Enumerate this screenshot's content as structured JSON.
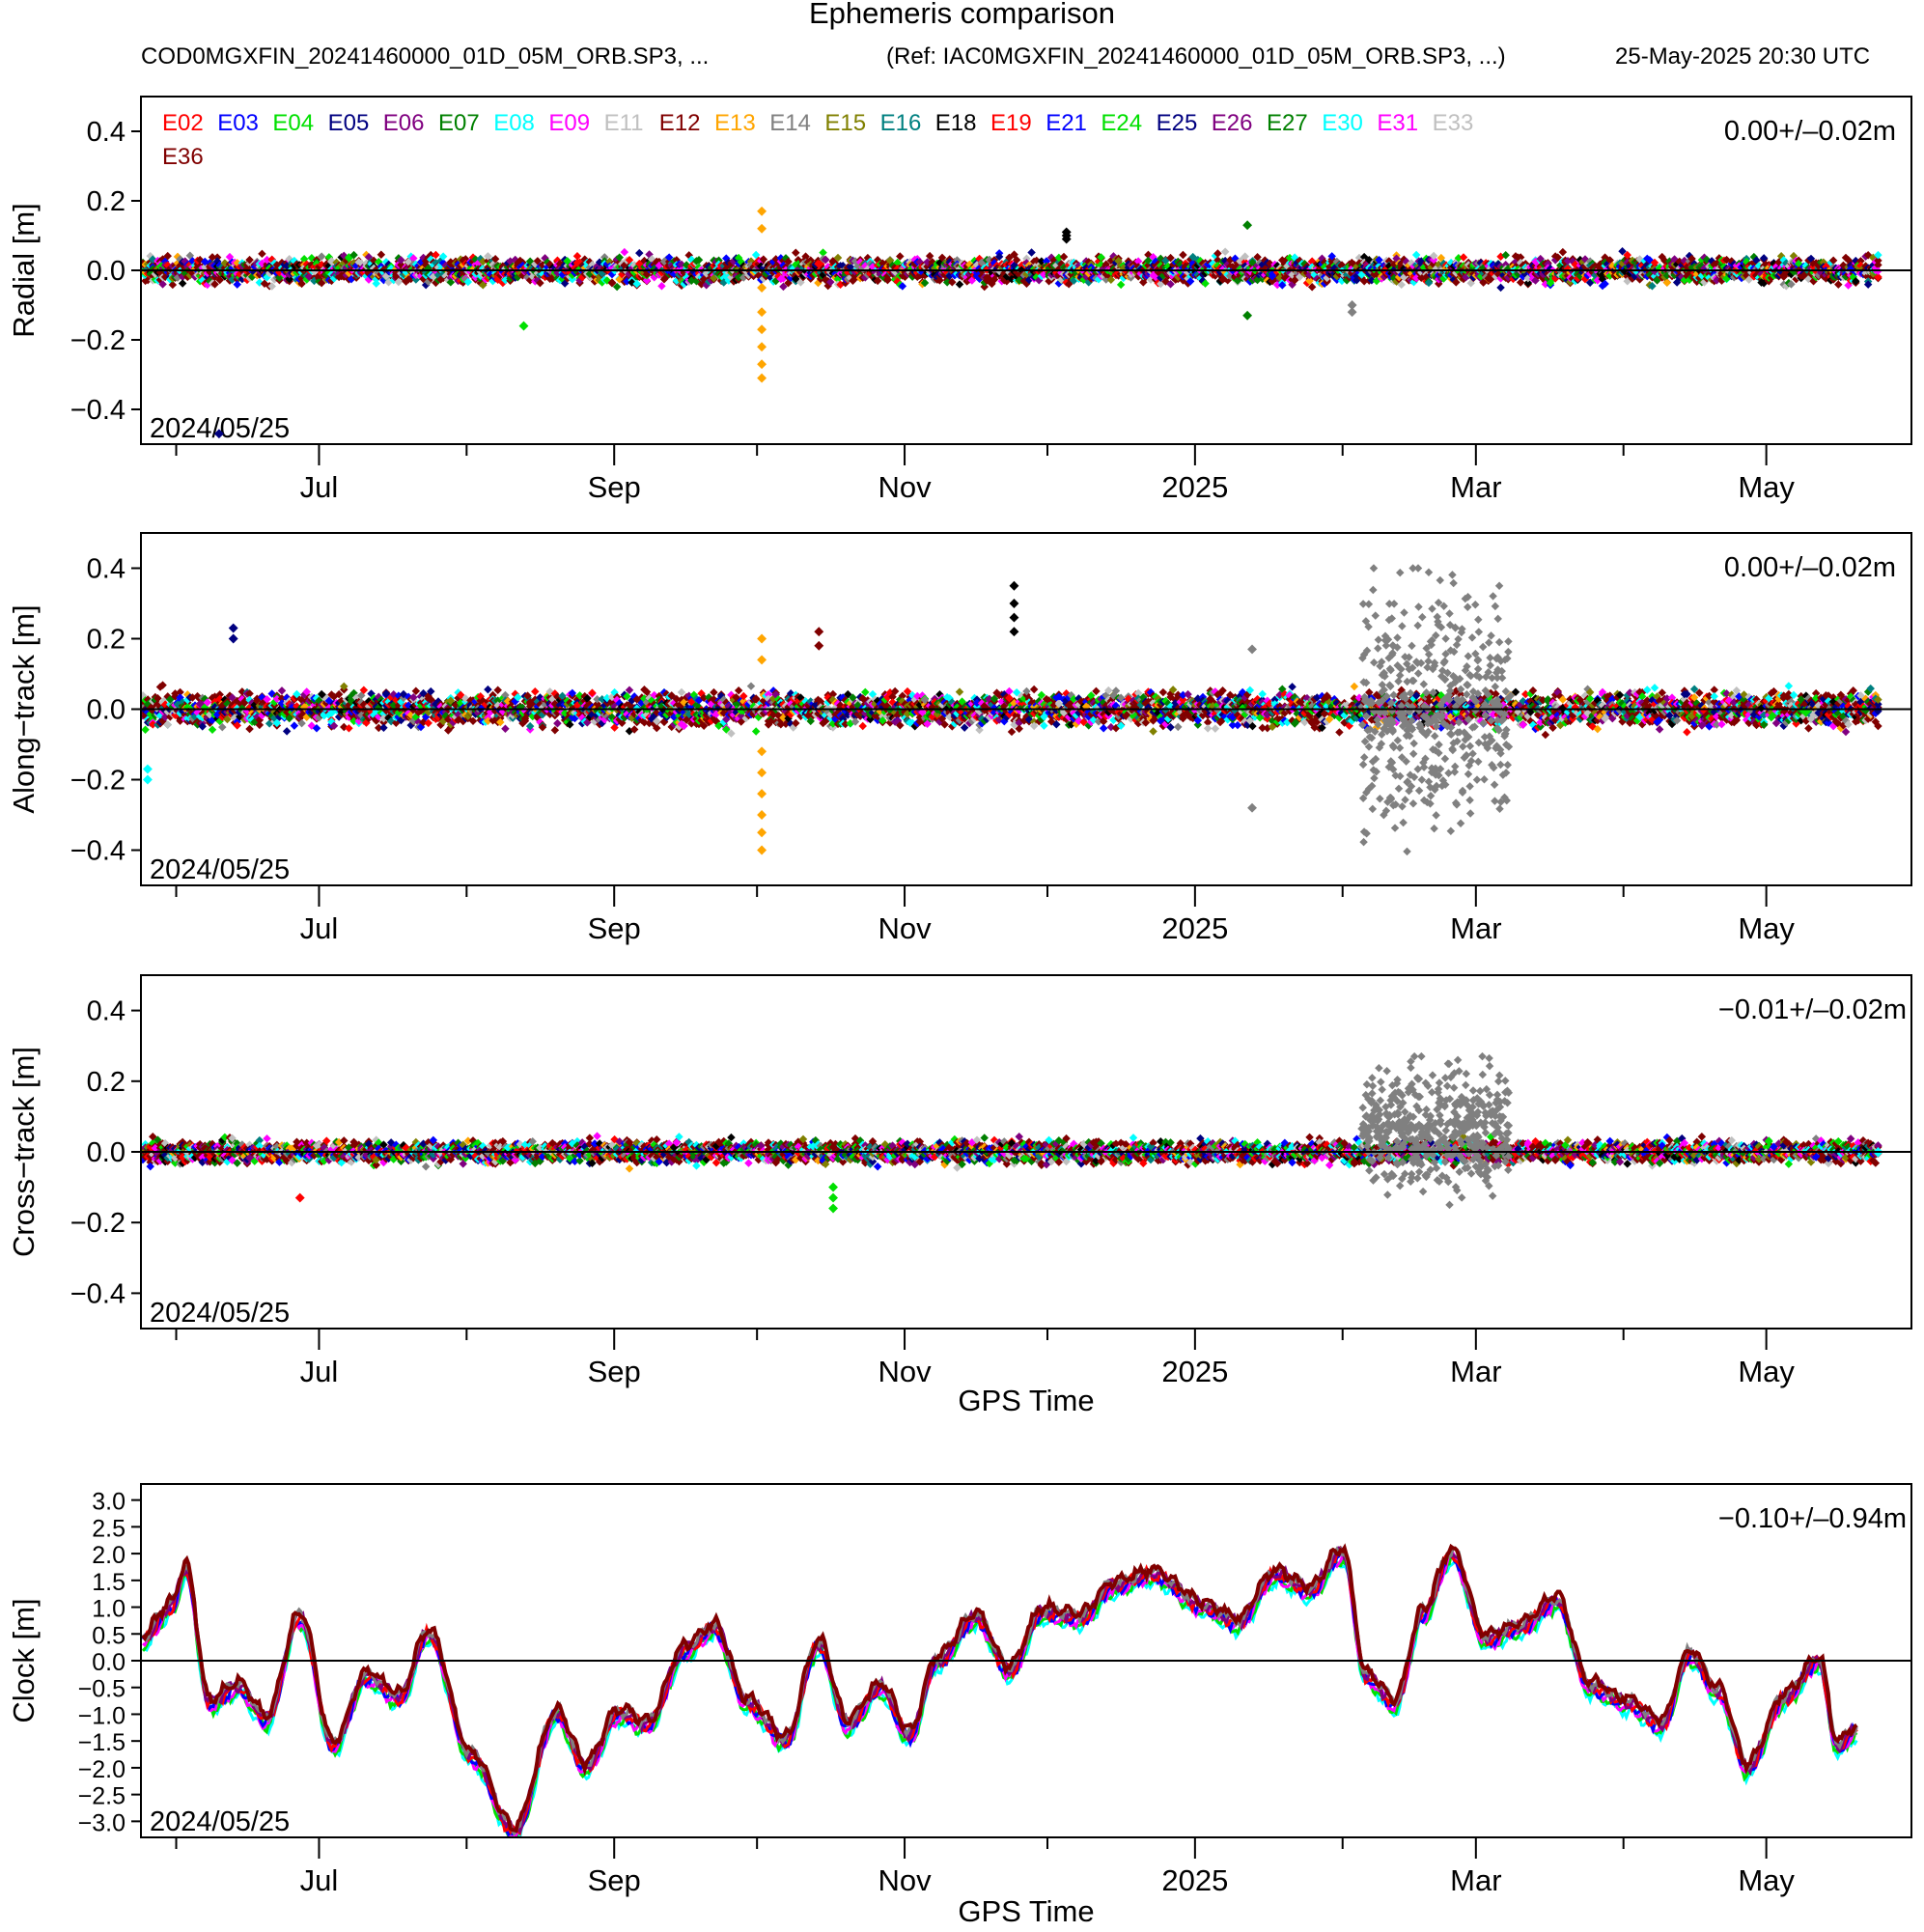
{
  "figure": {
    "title": "Ephemeris comparison",
    "file": "COD0MGXFIN_20241460000_01D_05M_ORB.SP3, ...",
    "ref": "(Ref: IAC0MGXFIN_20241460000_01D_05M_ORB.SP3, ...)",
    "timestamp": "25-May-2025 20:30 UTC",
    "start_date_label": "2024/05/25",
    "x_axis_label": "GPS Time"
  },
  "legend": {
    "satellites": [
      {
        "name": "E02",
        "color": "#ff0000"
      },
      {
        "name": "E03",
        "color": "#0000ff"
      },
      {
        "name": "E04",
        "color": "#00e000"
      },
      {
        "name": "E05",
        "color": "#000080"
      },
      {
        "name": "E06",
        "color": "#800080"
      },
      {
        "name": "E07",
        "color": "#008000"
      },
      {
        "name": "E08",
        "color": "#00ffff"
      },
      {
        "name": "E09",
        "color": "#ff00ff"
      },
      {
        "name": "E11",
        "color": "#c0c0c0"
      },
      {
        "name": "E12",
        "color": "#800000"
      },
      {
        "name": "E13",
        "color": "#ffa500"
      },
      {
        "name": "E14",
        "color": "#808080"
      },
      {
        "name": "E15",
        "color": "#808000"
      },
      {
        "name": "E16",
        "color": "#008080"
      },
      {
        "name": "E18",
        "color": "#000000"
      },
      {
        "name": "E19",
        "color": "#ff0000"
      },
      {
        "name": "E21",
        "color": "#0000ff"
      },
      {
        "name": "E24",
        "color": "#00e000"
      },
      {
        "name": "E25",
        "color": "#000080"
      },
      {
        "name": "E26",
        "color": "#800080"
      },
      {
        "name": "E27",
        "color": "#008000"
      },
      {
        "name": "E30",
        "color": "#00ffff"
      },
      {
        "name": "E31",
        "color": "#ff00ff"
      },
      {
        "name": "E33",
        "color": "#c0c0c0"
      },
      {
        "name": "E36",
        "color": "#800000"
      }
    ]
  },
  "chart_data": [
    {
      "type": "scatter",
      "ylabel": "Radial [m]",
      "stat": "0.00+/–0.02m",
      "ylim": [
        -0.5,
        0.5
      ],
      "yticks": [
        {
          "v": 0.4,
          "label": "0.4"
        },
        {
          "v": 0.2,
          "label": "0.2"
        },
        {
          "v": 0.0,
          "label": "0.0"
        },
        {
          "v": -0.2,
          "label": "−0.2"
        },
        {
          "v": -0.4,
          "label": "−0.4"
        }
      ],
      "xlim": [
        "2024-05-25",
        "2025-05-25"
      ],
      "xticks": [
        {
          "date": "2024-07-01",
          "label": "Jul"
        },
        {
          "date": "2024-09-01",
          "label": "Sep"
        },
        {
          "date": "2024-11-01",
          "label": "Nov"
        },
        {
          "date": "2025-01-01",
          "label": "2025"
        },
        {
          "date": "2025-03-01",
          "label": "Mar"
        },
        {
          "date": "2025-05-01",
          "label": "May"
        }
      ],
      "minor_ticks": [
        "2024-06-01",
        "2024-08-01",
        "2024-10-01",
        "2024-12-01",
        "2025-02-01",
        "2025-04-01"
      ],
      "band_spread": 0.03,
      "outliers": [
        {
          "date": "2024-10-02",
          "values": [
            0.17,
            0.12,
            -0.05,
            -0.12,
            -0.17,
            -0.22,
            -0.27,
            -0.31
          ],
          "color": "#ffa500"
        },
        {
          "date": "2024-06-10",
          "values": [
            -0.47
          ],
          "color": "#000080"
        },
        {
          "date": "2024-12-05",
          "values": [
            0.11,
            0.1,
            0.09
          ],
          "color": "#000000"
        },
        {
          "date": "2025-01-12",
          "values": [
            0.13,
            -0.13
          ],
          "color": "#008000"
        },
        {
          "date": "2024-08-13",
          "values": [
            -0.16
          ],
          "color": "#00e000"
        },
        {
          "date": "2025-02-03",
          "values": [
            -0.12,
            -0.1
          ],
          "color": "#808080"
        }
      ]
    },
    {
      "type": "scatter",
      "ylabel": "Along−track [m]",
      "stat": "0.00+/–0.02m",
      "ylim": [
        -0.5,
        0.5
      ],
      "yticks": [
        {
          "v": 0.4,
          "label": "0.4"
        },
        {
          "v": 0.2,
          "label": "0.2"
        },
        {
          "v": 0.0,
          "label": "0.0"
        },
        {
          "v": -0.2,
          "label": "−0.2"
        },
        {
          "v": -0.4,
          "label": "−0.4"
        }
      ],
      "xlim": [
        "2024-05-25",
        "2025-05-25"
      ],
      "xticks": [
        {
          "date": "2024-07-01",
          "label": "Jul"
        },
        {
          "date": "2024-09-01",
          "label": "Sep"
        },
        {
          "date": "2024-11-01",
          "label": "Nov"
        },
        {
          "date": "2025-01-01",
          "label": "2025"
        },
        {
          "date": "2025-03-01",
          "label": "Mar"
        },
        {
          "date": "2025-05-01",
          "label": "May"
        }
      ],
      "minor_ticks": [
        "2024-06-01",
        "2024-08-01",
        "2024-10-01",
        "2024-12-01",
        "2025-02-01",
        "2025-04-01"
      ],
      "band_spread": 0.04,
      "outliers": [
        {
          "date": "2024-10-02",
          "values": [
            0.2,
            0.14,
            -0.12,
            -0.18,
            -0.24,
            -0.3,
            -0.35,
            -0.4
          ],
          "color": "#ffa500"
        },
        {
          "date": "2024-11-24",
          "values": [
            0.35,
            0.3,
            0.26,
            0.22
          ],
          "color": "#000000"
        },
        {
          "date": "2024-06-13",
          "values": [
            0.23,
            0.2
          ],
          "color": "#000080"
        },
        {
          "date": "2024-10-14",
          "values": [
            0.22,
            0.18
          ],
          "color": "#800000"
        },
        {
          "date": "2024-05-26",
          "values": [
            -0.2,
            -0.17
          ],
          "color": "#00ffff"
        },
        {
          "date": "2025-01-13",
          "values": [
            0.17,
            -0.28
          ],
          "color": "#808080"
        }
      ],
      "scatter_band": {
        "from": "2025-02-05",
        "to": "2025-03-08",
        "ymin": -0.42,
        "ymax": 0.4,
        "color": "#808080"
      }
    },
    {
      "type": "scatter",
      "ylabel": "Cross−track [m]",
      "stat": "−0.01+/–0.02m",
      "ylim": [
        -0.5,
        0.5
      ],
      "yticks": [
        {
          "v": 0.4,
          "label": "0.4"
        },
        {
          "v": 0.2,
          "label": "0.2"
        },
        {
          "v": 0.0,
          "label": "0.0"
        },
        {
          "v": -0.2,
          "label": "−0.2"
        },
        {
          "v": -0.4,
          "label": "−0.4"
        }
      ],
      "xlim": [
        "2024-05-25",
        "2025-05-25"
      ],
      "xticks": [
        {
          "date": "2024-07-01",
          "label": "Jul"
        },
        {
          "date": "2024-09-01",
          "label": "Sep"
        },
        {
          "date": "2024-11-01",
          "label": "Nov"
        },
        {
          "date": "2025-01-01",
          "label": "2025"
        },
        {
          "date": "2025-03-01",
          "label": "Mar"
        },
        {
          "date": "2025-05-01",
          "label": "May"
        }
      ],
      "minor_ticks": [
        "2024-06-01",
        "2024-08-01",
        "2024-10-01",
        "2024-12-01",
        "2025-02-01",
        "2025-04-01"
      ],
      "band_spread": 0.025,
      "outliers": [
        {
          "date": "2024-10-17",
          "values": [
            -0.1,
            -0.13,
            -0.16
          ],
          "color": "#00e000"
        },
        {
          "date": "2024-06-27",
          "values": [
            -0.13
          ],
          "color": "#ff0000"
        }
      ],
      "scatter_band": {
        "from": "2025-02-05",
        "to": "2025-03-08",
        "ymin": -0.15,
        "ymax": 0.27,
        "color": "#808080",
        "bias": 0.07
      }
    },
    {
      "type": "line",
      "ylabel": "Clock [m]",
      "stat": "−0.10+/–0.94m",
      "ylim": [
        -3.3,
        3.3
      ],
      "yticks": [
        {
          "v": 3.0,
          "label": "3.0"
        },
        {
          "v": 2.5,
          "label": "2.5"
        },
        {
          "v": 2.0,
          "label": "2.0"
        },
        {
          "v": 1.5,
          "label": "1.5"
        },
        {
          "v": 1.0,
          "label": "1.0"
        },
        {
          "v": 0.5,
          "label": "0.5"
        },
        {
          "v": 0.0,
          "label": "0.0"
        },
        {
          "v": -0.5,
          "label": "−0.5"
        },
        {
          "v": -1.0,
          "label": "−1.0"
        },
        {
          "v": -1.5,
          "label": "−1.5"
        },
        {
          "v": -2.0,
          "label": "−2.0"
        },
        {
          "v": -2.5,
          "label": "−2.5"
        },
        {
          "v": -3.0,
          "label": "−3.0"
        }
      ],
      "xlim": [
        "2024-05-25",
        "2025-05-25"
      ],
      "xticks": [
        {
          "date": "2024-07-01",
          "label": "Jul"
        },
        {
          "date": "2024-09-01",
          "label": "Sep"
        },
        {
          "date": "2024-11-01",
          "label": "Nov"
        },
        {
          "date": "2025-01-01",
          "label": "2025"
        },
        {
          "date": "2025-03-01",
          "label": "Mar"
        },
        {
          "date": "2025-05-01",
          "label": "May"
        }
      ],
      "minor_ticks": [
        "2024-06-01",
        "2024-08-01",
        "2024-10-01",
        "2024-12-01",
        "2025-02-01",
        "2025-04-01"
      ],
      "points": [
        [
          "2024-05-25",
          0.4
        ],
        [
          "2024-05-31",
          1.0
        ],
        [
          "2024-06-03",
          1.7
        ],
        [
          "2024-06-08",
          -0.8
        ],
        [
          "2024-06-14",
          -0.5
        ],
        [
          "2024-06-20",
          -1.1
        ],
        [
          "2024-06-27",
          0.8
        ],
        [
          "2024-07-04",
          -1.6
        ],
        [
          "2024-07-11",
          -0.3
        ],
        [
          "2024-07-18",
          -0.7
        ],
        [
          "2024-07-24",
          0.5
        ],
        [
          "2024-08-02",
          -1.8
        ],
        [
          "2024-08-11",
          -3.2
        ],
        [
          "2024-08-20",
          -1.0
        ],
        [
          "2024-08-26",
          -2.0
        ],
        [
          "2024-09-02",
          -1.0
        ],
        [
          "2024-09-08",
          -1.2
        ],
        [
          "2024-09-16",
          0.2
        ],
        [
          "2024-09-22",
          0.6
        ],
        [
          "2024-09-29",
          -0.8
        ],
        [
          "2024-10-07",
          -1.5
        ],
        [
          "2024-10-14",
          0.3
        ],
        [
          "2024-10-20",
          -1.2
        ],
        [
          "2024-10-27",
          -0.5
        ],
        [
          "2024-11-02",
          -1.4
        ],
        [
          "2024-11-08",
          0.0
        ],
        [
          "2024-11-16",
          0.8
        ],
        [
          "2024-11-23",
          -0.2
        ],
        [
          "2024-11-30",
          0.9
        ],
        [
          "2024-12-08",
          0.8
        ],
        [
          "2024-12-15",
          1.4
        ],
        [
          "2024-12-23",
          1.6
        ],
        [
          "2025-01-03",
          1.0
        ],
        [
          "2025-01-10",
          0.7
        ],
        [
          "2025-01-18",
          1.6
        ],
        [
          "2025-01-25",
          1.3
        ],
        [
          "2025-02-01",
          2.0
        ],
        [
          "2025-02-06",
          -0.3
        ],
        [
          "2025-02-12",
          -0.8
        ],
        [
          "2025-02-18",
          0.9
        ],
        [
          "2025-02-24",
          2.0
        ],
        [
          "2025-03-03",
          0.4
        ],
        [
          "2025-03-10",
          0.6
        ],
        [
          "2025-03-18",
          1.1
        ],
        [
          "2025-03-25",
          -0.5
        ],
        [
          "2025-04-02",
          -0.8
        ],
        [
          "2025-04-09",
          -1.2
        ],
        [
          "2025-04-15",
          0.1
        ],
        [
          "2025-04-21",
          -0.6
        ],
        [
          "2025-04-27",
          -2.0
        ],
        [
          "2025-05-05",
          -0.7
        ],
        [
          "2025-05-12",
          0.0
        ],
        [
          "2025-05-16",
          -1.6
        ],
        [
          "2025-05-20",
          -1.3
        ]
      ]
    }
  ]
}
